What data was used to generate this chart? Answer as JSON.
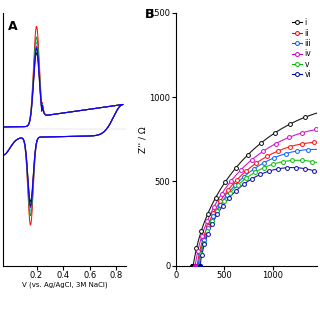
{
  "panel_A": {
    "label": "A",
    "xlabel": "V (vs. Ag/AgCl, 3M NaCl)",
    "x_ticks": [
      0.2,
      0.4,
      0.6,
      0.8
    ],
    "xlim": [
      -0.05,
      0.87
    ],
    "ylim": [
      -1.3,
      1.1
    ],
    "colors": [
      "#000000",
      "#ff0000",
      "#009900",
      "#00cccc",
      "#aa00aa",
      "#0000ff"
    ],
    "peak_heights": [
      0.7,
      0.95,
      0.85,
      0.8,
      0.76,
      0.74
    ],
    "bg_color": "#ffffff"
  },
  "panel_B": {
    "label": "B",
    "ylabel": "Z'' / Ω",
    "xlim": [
      0,
      1450
    ],
    "ylim": [
      0,
      1500
    ],
    "x_ticks": [
      0,
      500,
      1000
    ],
    "y_ticks": [
      0,
      500,
      1000,
      1500
    ],
    "legend_labels": [
      "i",
      "ii",
      "iii",
      "iv",
      "v",
      "vi"
    ],
    "colors": [
      "#000000",
      "#ff0000",
      "#0055ff",
      "#cc00cc",
      "#00bb00",
      "#0000aa"
    ],
    "params": [
      {
        "r_ct": 2200,
        "r_s": 180,
        "skew": 1.6
      },
      {
        "r_ct": 1700,
        "r_s": 220,
        "skew": 1.5
      },
      {
        "r_ct": 1600,
        "r_s": 230,
        "skew": 1.5
      },
      {
        "r_ct": 1900,
        "r_s": 200,
        "skew": 1.55
      },
      {
        "r_ct": 1450,
        "r_s": 240,
        "skew": 1.4
      },
      {
        "r_ct": 1350,
        "r_s": 250,
        "skew": 1.4
      }
    ],
    "bg_color": "#ffffff"
  }
}
